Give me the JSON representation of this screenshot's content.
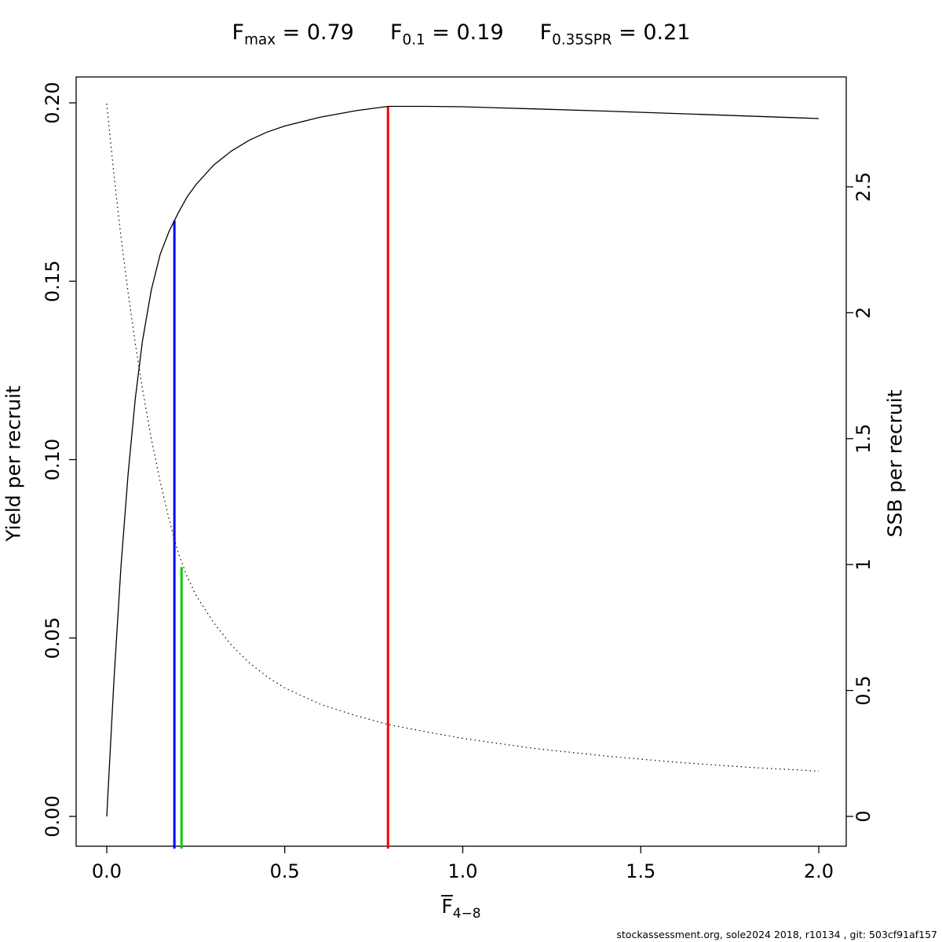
{
  "title": {
    "refs": [
      {
        "base": "F",
        "sub": "max",
        "rest": " = 0.79"
      },
      {
        "base": "F",
        "sub": "0.1",
        "rest": " = 0.19"
      },
      {
        "base": "F",
        "sub": "0.35SPR",
        "rest": " = 0.21"
      }
    ]
  },
  "footer": {
    "text": "stockassessment.org, sole2024 2018, r10134 , git: 503cf91af157"
  },
  "chart_data": {
    "type": "line",
    "title": "Fmax = 0.79   F0.1 = 0.19   F0.35SPR = 0.21",
    "xlabel_base": "F",
    "xlabel_sub": "4−8",
    "ylabel_left": "Yield per recruit",
    "ylabel_right": "SSB per recruit",
    "xlim": [
      0,
      2.05
    ],
    "ylim_left": [
      0,
      0.2
    ],
    "ylim_right": [
      0,
      2.5
    ],
    "grid": false,
    "legend": "none",
    "x_ticks": {
      "values": [
        0,
        0.5,
        1,
        1.5,
        2
      ],
      "labels": [
        "0.0",
        "0.5",
        "1.0",
        "1.5",
        "2.0"
      ]
    },
    "y_ticks_left": {
      "values": [
        0,
        0.05,
        0.1,
        0.15,
        0.2
      ],
      "labels": [
        "0.00",
        "0.05",
        "0.10",
        "0.15",
        "0.20"
      ]
    },
    "y_ticks_right": {
      "values": [
        0,
        0.5,
        1,
        1.5,
        2,
        2.5
      ],
      "labels": [
        "0",
        "0.5",
        "1",
        "1.5",
        "2",
        "2.5"
      ]
    },
    "series": [
      {
        "name": "yield-per-recruit",
        "axis": "left",
        "line_style": "solid",
        "color": "#000000",
        "x": [
          0,
          0.02,
          0.04,
          0.06,
          0.08,
          0.1,
          0.125,
          0.15,
          0.175,
          0.2,
          0.225,
          0.25,
          0.3,
          0.35,
          0.4,
          0.45,
          0.5,
          0.6,
          0.7,
          0.79,
          0.9,
          1,
          1.1,
          1.2,
          1.4,
          1.6,
          1.8,
          2
        ],
        "y": [
          0,
          0.038,
          0.07,
          0.096,
          0.117,
          0.133,
          0.1475,
          0.1575,
          0.164,
          0.169,
          0.1735,
          0.177,
          0.1825,
          0.1865,
          0.1895,
          0.1918,
          0.1935,
          0.196,
          0.1978,
          0.199,
          0.199,
          0.1989,
          0.1986,
          0.1983,
          0.1977,
          0.197,
          0.1963,
          0.1956
        ]
      },
      {
        "name": "ssb-per-recruit",
        "axis": "right",
        "line_style": "dotted",
        "color": "#000000",
        "x": [
          0,
          0.02,
          0.04,
          0.06,
          0.08,
          0.1,
          0.125,
          0.15,
          0.175,
          0.2,
          0.225,
          0.25,
          0.3,
          0.35,
          0.4,
          0.45,
          0.5,
          0.6,
          0.7,
          0.79,
          0.9,
          1,
          1.1,
          1.2,
          1.4,
          1.6,
          1.8,
          2
        ],
        "y": [
          2.83,
          2.55,
          2.3,
          2.08,
          1.88,
          1.7,
          1.5,
          1.33,
          1.18,
          1.05,
          0.955,
          0.88,
          0.77,
          0.68,
          0.61,
          0.555,
          0.51,
          0.445,
          0.4,
          0.365,
          0.335,
          0.31,
          0.29,
          0.27,
          0.24,
          0.215,
          0.195,
          0.18
        ]
      }
    ],
    "reference_lines": [
      {
        "name": "F0.1",
        "x": 0.19,
        "color": "#0000FF",
        "top_axis": "left",
        "top_value": 0.167
      },
      {
        "name": "F0.35SPR",
        "x": 0.21,
        "color": "#00CC00",
        "top_axis": "right",
        "top_value": 0.99
      },
      {
        "name": "Fmax",
        "x": 0.79,
        "color": "#FF0000",
        "top_axis": "left",
        "top_value": 0.1989
      }
    ]
  }
}
